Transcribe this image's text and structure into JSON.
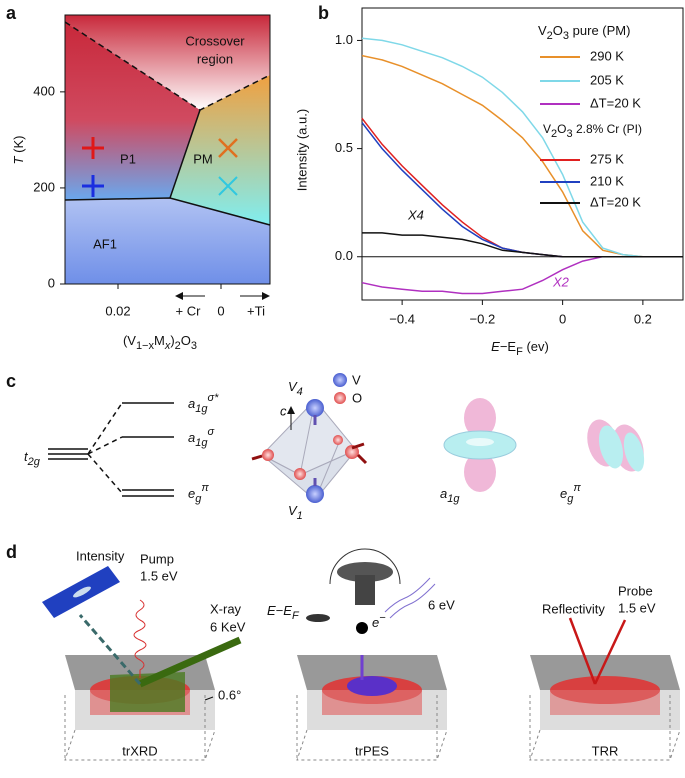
{
  "chart_data": [
    {
      "type": "phase-diagram",
      "panel": "a",
      "ylabel_var": "T",
      "ylabel_unit": " (K)",
      "ylim": [
        0,
        560
      ],
      "yticks": [
        0,
        200,
        400
      ],
      "xtick_labels": [
        "0.02",
        "0"
      ],
      "dopants": [
        "+ Cr",
        "+Ti"
      ],
      "xlabel": {
        "a": "(V",
        "b": "1−x",
        "c": "M",
        "d": "x",
        "e": ")",
        "f": "2",
        "g": "O",
        "h": "3"
      },
      "regions": {
        "crossover": [
          "Crossover",
          "region"
        ],
        "p1": "P1",
        "pm": "PM",
        "af1": "AF1"
      }
    },
    {
      "type": "line",
      "panel": "b",
      "ylabel": "Intensity (a.u.)",
      "xlabel": {
        "a": "E",
        "b": "−E",
        "c": "F",
        "d": " (ev)"
      },
      "xlim": [
        -0.5,
        0.3
      ],
      "xticks": [
        {
          "value": -0.4,
          "label": "−0.4"
        },
        {
          "value": -0.2,
          "label": "−0.2"
        },
        0,
        0.2
      ],
      "ylim": [
        -0.2,
        1.15
      ],
      "yticks": [
        {
          "value": 0,
          "label": "0.0"
        },
        0.5,
        {
          "value": 1,
          "label": "1.0"
        }
      ],
      "x": [
        -0.5,
        -0.45,
        -0.4,
        -0.35,
        -0.3,
        -0.25,
        -0.2,
        -0.15,
        -0.1,
        -0.05,
        0,
        0.05,
        0.1,
        0.15,
        0.2,
        0.25,
        0.3
      ],
      "groups": [
        {
          "a": "V",
          "b": "2",
          "c": "O",
          "d": "3",
          "e": " pure (PM)"
        },
        {
          "a": "V",
          "b": "2",
          "c": "O",
          "d": "3",
          "e": " 2.8% Cr (PI)"
        }
      ],
      "series": [
        {
          "name": "290 K",
          "color": "#e8902a",
          "values": [
            0.93,
            0.91,
            0.88,
            0.84,
            0.8,
            0.75,
            0.7,
            0.63,
            0.55,
            0.44,
            0.3,
            0.12,
            0.03,
            0.01,
            0,
            0,
            0
          ]
        },
        {
          "name": "205 K",
          "color": "#7fd8e8",
          "values": [
            1.01,
            1.0,
            0.98,
            0.95,
            0.92,
            0.88,
            0.83,
            0.76,
            0.67,
            0.55,
            0.38,
            0.16,
            0.04,
            0.01,
            0,
            0,
            0
          ]
        },
        {
          "name": "ΔT=20 K",
          "color": "#b030c0",
          "values": [
            -0.12,
            -0.14,
            -0.15,
            -0.16,
            -0.16,
            -0.17,
            -0.17,
            -0.16,
            -0.15,
            -0.11,
            -0.06,
            -0.02,
            0,
            0,
            0,
            0,
            0
          ]
        },
        {
          "name": "275 K",
          "color": "#e02020",
          "values": [
            0.64,
            0.52,
            0.42,
            0.33,
            0.24,
            0.16,
            0.09,
            0.04,
            0.02,
            0.01,
            0,
            0,
            0,
            0,
            0,
            0,
            0
          ]
        },
        {
          "name": "210 K",
          "color": "#2040c0",
          "values": [
            0.62,
            0.5,
            0.4,
            0.31,
            0.22,
            0.14,
            0.08,
            0.04,
            0.02,
            0.01,
            0,
            0,
            0,
            0,
            0,
            0,
            0
          ]
        },
        {
          "name": "ΔT=20 K",
          "color": "#111111",
          "values": [
            0.11,
            0.11,
            0.1,
            0.1,
            0.09,
            0.08,
            0.06,
            0.03,
            0.02,
            0.01,
            0,
            0,
            0,
            0,
            0,
            0,
            0
          ]
        }
      ],
      "annotations": [
        "X4",
        "X2"
      ]
    }
  ],
  "panel_c": {
    "label": "c",
    "t2g": {
      "base": "t",
      "sub": "2g"
    },
    "levels": [
      {
        "base": "a",
        "sub": "1g",
        "sup": "σ*"
      },
      {
        "base": "a",
        "sub": "1g",
        "sup": "σ"
      },
      {
        "base": "e",
        "sub": "g",
        "sup": "π"
      }
    ],
    "axis": "c",
    "v4": {
      "base": "V",
      "sub": "4"
    },
    "v1": {
      "base": "V",
      "sub": "1"
    },
    "legend": [
      "V",
      "O"
    ],
    "orbitals": [
      {
        "base": "a",
        "sub": "1g"
      },
      {
        "base": "e",
        "sub": "g",
        "sup": "π"
      }
    ]
  },
  "panel_d": {
    "label": "d",
    "xrd": {
      "intensity": "Intensity",
      "pump": [
        "Pump",
        "1.5 eV"
      ],
      "xray": [
        "X-ray",
        "6 KeV"
      ],
      "angle": "0.6°",
      "name": "trXRD"
    },
    "pes": {
      "energy": {
        "a": "E−E",
        "b": "F"
      },
      "electron": {
        "a": "e",
        "b": "−"
      },
      "photon": "6 eV",
      "name": "trPES"
    },
    "trr": {
      "reflectivity": "Reflectivity",
      "probe": [
        "Probe",
        "1.5 eV"
      ],
      "name": "TRR"
    }
  }
}
